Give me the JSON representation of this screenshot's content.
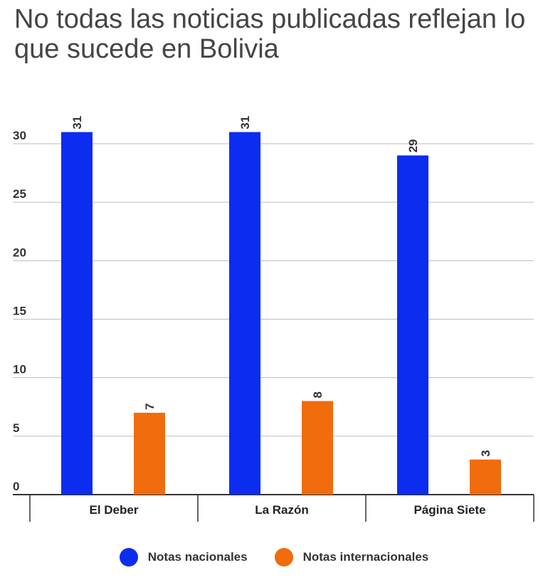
{
  "chart_data": {
    "type": "bar",
    "title": "No todas las noticias publicadas reflejan lo que sucede en Bolivia",
    "categories": [
      "El Deber",
      "La Razón",
      "Página Siete"
    ],
    "series": [
      {
        "name": "Notas nacionales",
        "values": [
          31,
          31,
          29
        ],
        "color": "#0c2cf0"
      },
      {
        "name": "Notas internacionales",
        "values": [
          7,
          8,
          3
        ],
        "color": "#f06c0c"
      }
    ],
    "yticks": [
      "0",
      "5",
      "10",
      "15",
      "20",
      "25",
      "30"
    ],
    "ylim": [
      0,
      30
    ],
    "grid": true,
    "legend_position": "bottom"
  }
}
